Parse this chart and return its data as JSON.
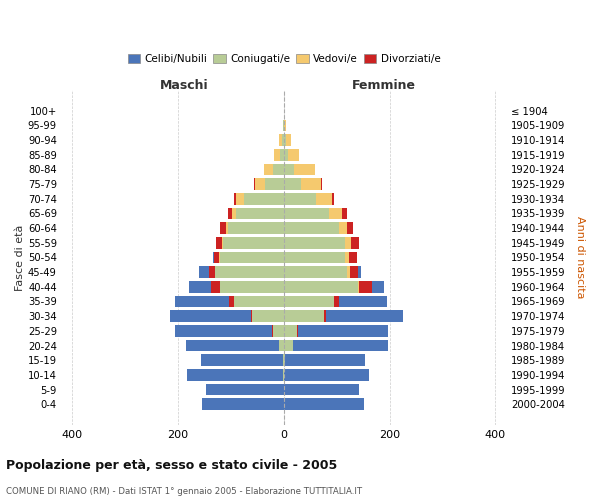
{
  "age_groups": [
    "0-4",
    "5-9",
    "10-14",
    "15-19",
    "20-24",
    "25-29",
    "30-34",
    "35-39",
    "40-44",
    "45-49",
    "50-54",
    "55-59",
    "60-64",
    "65-69",
    "70-74",
    "75-79",
    "80-84",
    "85-89",
    "90-94",
    "95-99",
    "100+"
  ],
  "birth_years": [
    "2000-2004",
    "1995-1999",
    "1990-1994",
    "1985-1989",
    "1980-1984",
    "1975-1979",
    "1970-1974",
    "1965-1969",
    "1960-1964",
    "1955-1959",
    "1950-1954",
    "1945-1949",
    "1940-1944",
    "1935-1939",
    "1930-1934",
    "1925-1929",
    "1920-1924",
    "1915-1919",
    "1910-1914",
    "1905-1909",
    "≤ 1904"
  ],
  "colors": {
    "celibe": "#4b75b9",
    "coniugato": "#b8cc96",
    "vedovo": "#f5c96e",
    "divorziato": "#cc2222"
  },
  "maschi": {
    "coniugato": [
      0,
      0,
      2,
      2,
      10,
      20,
      60,
      95,
      120,
      130,
      120,
      115,
      105,
      90,
      75,
      35,
      20,
      8,
      4,
      1,
      0
    ],
    "celibe": [
      155,
      148,
      182,
      155,
      175,
      185,
      155,
      110,
      60,
      30,
      15,
      12,
      10,
      8,
      5,
      4,
      2,
      1,
      0,
      0,
      0
    ],
    "vedovo": [
      0,
      0,
      0,
      0,
      0,
      0,
      0,
      0,
      0,
      0,
      2,
      3,
      5,
      8,
      15,
      20,
      18,
      10,
      5,
      1,
      0
    ],
    "divorziato": [
      0,
      0,
      0,
      0,
      0,
      2,
      2,
      8,
      18,
      12,
      10,
      10,
      10,
      8,
      5,
      2,
      0,
      0,
      0,
      0,
      0
    ]
  },
  "femmine": {
    "coniugata": [
      0,
      0,
      0,
      2,
      18,
      25,
      75,
      95,
      140,
      120,
      115,
      115,
      105,
      85,
      60,
      32,
      20,
      8,
      4,
      1,
      0
    ],
    "nubile": [
      152,
      142,
      160,
      152,
      178,
      172,
      150,
      100,
      50,
      25,
      15,
      10,
      10,
      8,
      5,
      3,
      2,
      1,
      0,
      0,
      0
    ],
    "vedova": [
      0,
      0,
      0,
      0,
      0,
      0,
      0,
      0,
      2,
      5,
      8,
      12,
      15,
      25,
      30,
      38,
      38,
      20,
      10,
      2,
      1
    ],
    "divorziata": [
      0,
      0,
      0,
      0,
      0,
      2,
      5,
      10,
      25,
      15,
      15,
      15,
      10,
      10,
      5,
      2,
      0,
      0,
      0,
      0,
      0
    ]
  },
  "title": "Popolazione per età, sesso e stato civile - 2005",
  "subtitle": "COMUNE DI RIANO (RM) - Dati ISTAT 1° gennaio 2005 - Elaborazione TUTTITALIA.IT",
  "xlabel_left": "Maschi",
  "xlabel_right": "Femmine",
  "ylabel_left": "Fasce di età",
  "ylabel_right": "Anni di nascita",
  "xlim": 420,
  "legend_labels": [
    "Celibi/Nubili",
    "Coniugati/e",
    "Vedovi/e",
    "Divorziati/e"
  ],
  "legend_colors": [
    "#4b75b9",
    "#b8cc96",
    "#f5c96e",
    "#cc2222"
  ],
  "background_color": "#ffffff",
  "grid_color": "#cccccc"
}
